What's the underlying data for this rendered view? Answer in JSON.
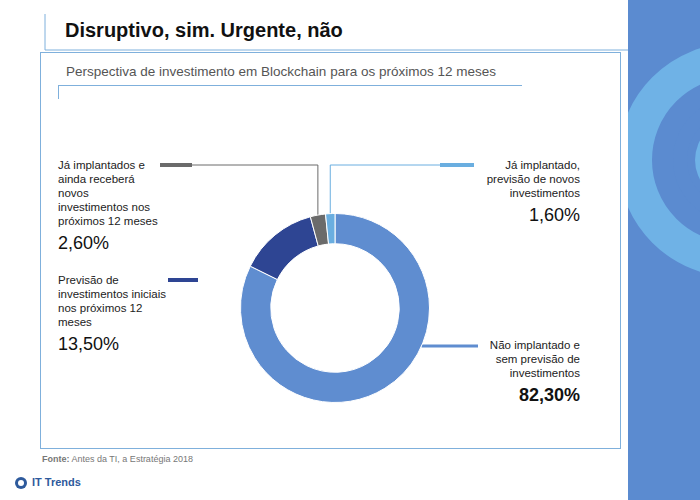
{
  "chart_data": {
    "type": "doughnut",
    "title": "Disruptivo, sim. Urgente, não",
    "subtitle": "Perspectiva de investimento em Blockchain para os próximos 12 meses",
    "categories": [
      "Não implantado e sem previsão de investimentos",
      "Previsão de investimentos iniciais nos próximos 12 meses",
      "Já implantados e ainda receberá novos investimentos nos próximos 12 meses",
      "Já implantado, previsão de novos investimentos"
    ],
    "values": [
      82.3,
      13.5,
      2.6,
      1.6
    ],
    "value_labels": [
      "82,30%",
      "13,50%",
      "2,60%",
      "1,60%"
    ],
    "colors": [
      "#5f8dd0",
      "#2e4593",
      "#6b6b6b",
      "#6aaee0"
    ],
    "data_labels": true,
    "annotations": [
      "Fonte: Antes da TI, a Estratégia 2018",
      "IT Trends"
    ]
  }
}
